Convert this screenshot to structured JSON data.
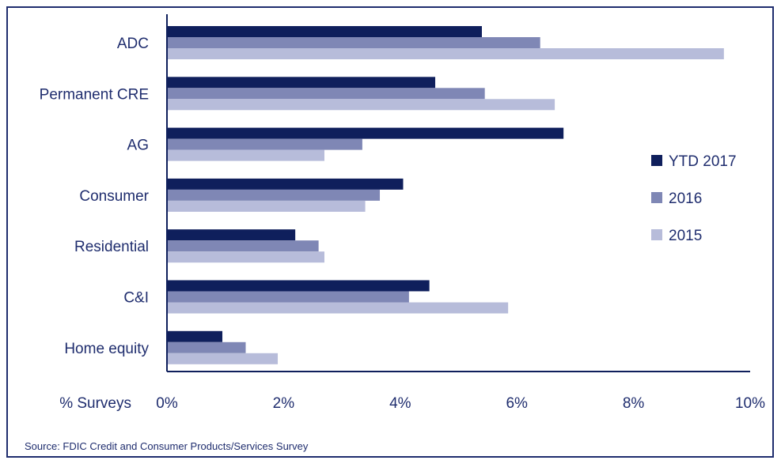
{
  "chart_data": {
    "type": "bar",
    "orientation": "horizontal",
    "categories": [
      "ADC",
      "Permanent CRE",
      "AG",
      "Consumer",
      "Residential",
      "C&I",
      "Home equity"
    ],
    "series": [
      {
        "name": "YTD 2017",
        "color": "#0f1f5c",
        "values": [
          5.4,
          4.6,
          6.8,
          4.05,
          2.2,
          4.5,
          0.95
        ]
      },
      {
        "name": "2016",
        "color": "#7f87b5",
        "values": [
          6.4,
          5.45,
          3.35,
          3.65,
          2.6,
          4.15,
          1.35
        ]
      },
      {
        "name": "2015",
        "color": "#b7bcda",
        "values": [
          9.55,
          6.65,
          2.7,
          3.4,
          2.7,
          5.85,
          1.9
        ]
      }
    ],
    "xlabel": "% Surveys",
    "xlim": [
      0,
      10
    ],
    "xticks": [
      "0%",
      "2%",
      "4%",
      "6%",
      "8%",
      "10%"
    ],
    "grid": false,
    "legend": "right",
    "source": "Source: FDIC Credit and Consumer Products/Services Survey"
  }
}
